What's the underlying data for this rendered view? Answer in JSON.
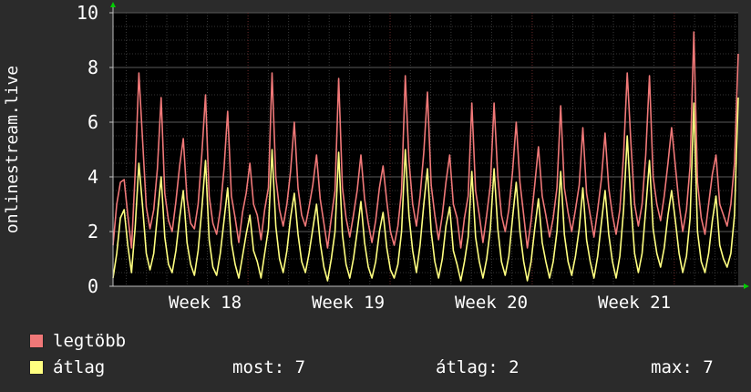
{
  "chart_data": {
    "type": "line",
    "ylabel": "onlinestream.live",
    "ylim": [
      0,
      10
    ],
    "yticks": [
      0,
      2,
      4,
      6,
      8,
      10
    ],
    "x_labels": [
      "Week 18",
      "Week 19",
      "Week 20",
      "Week 21"
    ],
    "grid": true,
    "series": [
      {
        "name": "legtöbb",
        "color": "#f07878",
        "style": "area-fill",
        "values": [
          1.5,
          3.0,
          3.8,
          3.9,
          2.6,
          1.4,
          4.2,
          7.8,
          5.3,
          2.9,
          2.1,
          2.8,
          4.3,
          6.9,
          3.4,
          2.4,
          2.0,
          3.1,
          4.4,
          5.4,
          3.2,
          2.3,
          2.1,
          3.0,
          4.8,
          7.0,
          3.3,
          2.3,
          1.9,
          2.8,
          4.3,
          6.4,
          3.3,
          2.5,
          1.6,
          2.7,
          3.4,
          4.5,
          3.0,
          2.6,
          1.7,
          2.8,
          3.6,
          7.8,
          4.0,
          2.8,
          2.2,
          3.0,
          4.2,
          6.0,
          3.6,
          2.6,
          2.2,
          2.9,
          3.7,
          4.8,
          3.2,
          2.3,
          1.4,
          2.5,
          3.5,
          7.6,
          3.6,
          2.5,
          1.8,
          2.6,
          3.5,
          4.8,
          3.2,
          2.3,
          1.6,
          2.4,
          3.6,
          4.4,
          3.1,
          2.0,
          1.5,
          2.2,
          3.5,
          7.7,
          4.6,
          3.0,
          2.2,
          3.3,
          4.9,
          7.1,
          3.7,
          2.6,
          1.7,
          2.6,
          3.8,
          4.8,
          3.0,
          2.5,
          1.4,
          2.5,
          3.3,
          6.7,
          3.5,
          2.6,
          1.6,
          2.6,
          3.7,
          6.7,
          4.0,
          2.6,
          2.0,
          2.8,
          4.2,
          6.0,
          3.8,
          2.6,
          1.4,
          2.4,
          3.7,
          5.1,
          3.3,
          2.6,
          1.8,
          2.5,
          3.6,
          6.6,
          3.6,
          2.7,
          2.0,
          2.8,
          3.7,
          5.8,
          3.4,
          2.6,
          1.8,
          2.8,
          3.9,
          5.6,
          3.6,
          2.6,
          1.9,
          2.8,
          4.8,
          7.8,
          5.2,
          3.0,
          2.2,
          3.0,
          4.8,
          7.7,
          4.0,
          3.0,
          2.4,
          3.3,
          4.5,
          5.8,
          4.4,
          3.0,
          2.0,
          2.8,
          4.4,
          9.3,
          3.8,
          2.5,
          1.9,
          3.0,
          4.1,
          4.8,
          3.0,
          2.6,
          2.2,
          3.0,
          4.5,
          8.5
        ]
      },
      {
        "name": "átlag",
        "color": "#ffff80",
        "style": "line",
        "values": [
          0.3,
          1.2,
          2.5,
          2.8,
          1.5,
          0.5,
          2.2,
          4.5,
          2.9,
          1.2,
          0.6,
          1.2,
          2.6,
          4.0,
          1.8,
          0.8,
          0.5,
          1.3,
          2.5,
          3.5,
          1.6,
          0.8,
          0.4,
          1.3,
          2.8,
          4.6,
          1.7,
          0.7,
          0.4,
          1.2,
          2.4,
          3.6,
          1.6,
          0.8,
          0.3,
          1.1,
          1.9,
          2.6,
          1.3,
          0.9,
          0.3,
          1.2,
          2.1,
          5.0,
          2.2,
          1.0,
          0.5,
          1.3,
          2.5,
          3.4,
          1.9,
          0.9,
          0.5,
          1.2,
          2.1,
          3.0,
          1.6,
          0.7,
          0.2,
          1.0,
          2.0,
          4.9,
          1.9,
          0.8,
          0.3,
          1.0,
          2.0,
          3.1,
          1.6,
          0.7,
          0.3,
          0.9,
          2.0,
          2.7,
          1.4,
          0.6,
          0.3,
          0.8,
          2.0,
          5.0,
          2.6,
          1.3,
          0.5,
          1.5,
          3.0,
          4.3,
          2.0,
          0.9,
          0.3,
          1.0,
          2.2,
          2.9,
          1.3,
          0.8,
          0.2,
          0.9,
          1.8,
          4.2,
          1.8,
          0.9,
          0.3,
          1.0,
          2.1,
          4.3,
          2.1,
          0.9,
          0.4,
          1.1,
          2.5,
          3.8,
          2.0,
          0.9,
          0.2,
          0.9,
          2.1,
          3.2,
          1.6,
          0.9,
          0.3,
          0.9,
          2.0,
          4.2,
          1.9,
          0.9,
          0.4,
          1.1,
          2.1,
          3.6,
          1.7,
          0.9,
          0.3,
          1.1,
          2.3,
          3.5,
          1.9,
          0.9,
          0.3,
          1.1,
          2.8,
          5.5,
          3.0,
          1.2,
          0.5,
          1.2,
          2.8,
          4.6,
          2.1,
          1.2,
          0.7,
          1.4,
          2.6,
          3.5,
          2.4,
          1.2,
          0.5,
          1.1,
          2.5,
          6.7,
          2.0,
          0.9,
          0.5,
          1.2,
          2.4,
          3.3,
          1.5,
          1.0,
          0.7,
          1.2,
          2.6,
          6.9
        ]
      }
    ]
  },
  "legend": [
    {
      "label": "legtöbb",
      "color": "#f07878"
    },
    {
      "label": "átlag",
      "color": "#ffff80"
    }
  ],
  "stats": {
    "now": "most: 7",
    "avg": "átlag: 2",
    "max": "max: 7"
  }
}
